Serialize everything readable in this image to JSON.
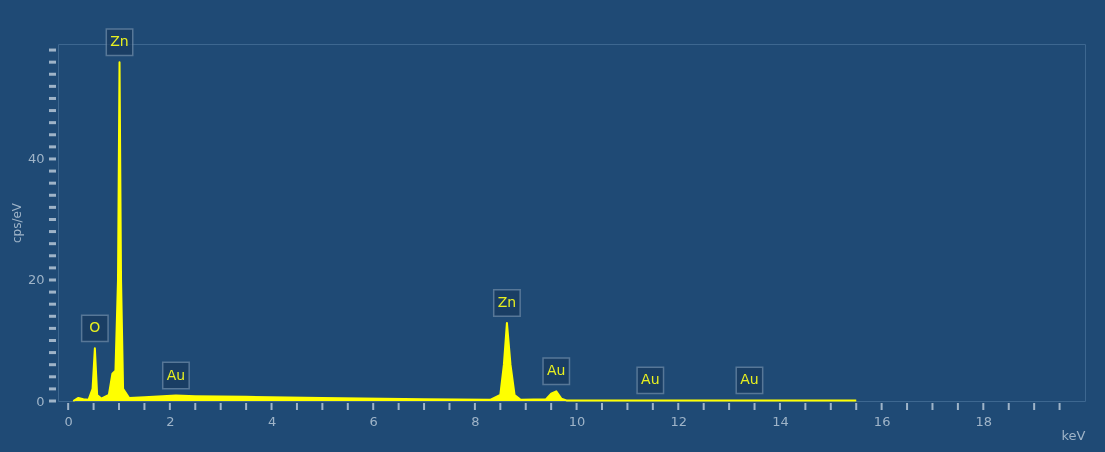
{
  "chart_data": {
    "type": "area",
    "xlabel": "keV",
    "ylabel": "cps/eV",
    "x": [
      0.1,
      0.2,
      0.3,
      0.4,
      0.48,
      0.525,
      0.57,
      0.65,
      0.8,
      0.87,
      0.93,
      0.98,
      1.01,
      1.04,
      1.08,
      1.2,
      1.5,
      2.12,
      2.5,
      3.5,
      5,
      7,
      8.3,
      8.5,
      8.57,
      8.63,
      8.7,
      8.78,
      8.9,
      9.4,
      9.5,
      9.6,
      9.7,
      9.8,
      12,
      15.5
    ],
    "series": [
      {
        "color": "#ffff00",
        "values": [
          0,
          0.5,
          0.3,
          0.2,
          2,
          8.7,
          1,
          0.4,
          1,
          4.5,
          5,
          20,
          56,
          20,
          2,
          0.5,
          0.6,
          0.9,
          0.8,
          0.7,
          0.5,
          0.3,
          0.2,
          1,
          6,
          12.9,
          6,
          1,
          0.2,
          0.3,
          1.2,
          1.6,
          0.4,
          0.1,
          0.1,
          0.1
        ]
      }
    ],
    "annotations": [
      {
        "text": "O",
        "x": 0.525,
        "y": 8.7
      },
      {
        "text": "Zn",
        "x": 1.01,
        "y": 56
      },
      {
        "text": "Au",
        "x": 2.12,
        "y": 0.9
      },
      {
        "text": "Zn",
        "x": 8.63,
        "y": 12.9
      },
      {
        "text": "Au",
        "x": 9.6,
        "y": 1.6
      },
      {
        "text": "Au",
        "x": 11.45,
        "y": 0.1
      },
      {
        "text": "Au",
        "x": 13.4,
        "y": 0.1
      }
    ],
    "xlim": [
      -0.2,
      20
    ],
    "ylim": [
      0,
      59
    ],
    "xticks": [
      0,
      {
        "value": 0.5,
        "label": null
      },
      {
        "value": 1,
        "label": null
      },
      {
        "value": 1.5,
        "label": null
      },
      2,
      {
        "value": 2.5,
        "label": null
      },
      {
        "value": 3,
        "label": null
      },
      {
        "value": 3.5,
        "label": null
      },
      4,
      {
        "value": 4.5,
        "label": null
      },
      {
        "value": 5,
        "label": null
      },
      {
        "value": 5.5,
        "label": null
      },
      6,
      {
        "value": 6.5,
        "label": null
      },
      {
        "value": 7,
        "label": null
      },
      {
        "value": 7.5,
        "label": null
      },
      8,
      {
        "value": 8.5,
        "label": null
      },
      {
        "value": 9,
        "label": null
      },
      {
        "value": 9.5,
        "label": null
      },
      10,
      {
        "value": 10.5,
        "label": null
      },
      {
        "value": 11,
        "label": null
      },
      {
        "value": 11.5,
        "label": null
      },
      12,
      {
        "value": 12.5,
        "label": null
      },
      {
        "value": 13,
        "label": null
      },
      {
        "value": 13.5,
        "label": null
      },
      14,
      {
        "value": 14.5,
        "label": null
      },
      {
        "value": 15,
        "label": null
      },
      {
        "value": 15.5,
        "label": null
      },
      16,
      {
        "value": 16.5,
        "label": null
      },
      {
        "value": 17,
        "label": null
      },
      {
        "value": 17.5,
        "label": null
      },
      18,
      {
        "value": 18.5,
        "label": null
      },
      {
        "value": 19,
        "label": null
      },
      {
        "value": 19.5,
        "label": null
      }
    ],
    "yticks": [
      0,
      {
        "value": 2,
        "label": null
      },
      {
        "value": 4,
        "label": null
      },
      {
        "value": 6,
        "label": null
      },
      {
        "value": 8,
        "label": null
      },
      {
        "value": 10,
        "label": null
      },
      {
        "value": 12,
        "label": null
      },
      {
        "value": 14,
        "label": null
      },
      {
        "value": 16,
        "label": null
      },
      {
        "value": 18,
        "label": null
      },
      20,
      {
        "value": 22,
        "label": null
      },
      {
        "value": 24,
        "label": null
      },
      {
        "value": 26,
        "label": null
      },
      {
        "value": 28,
        "label": null
      },
      {
        "value": 30,
        "label": null
      },
      {
        "value": 32,
        "label": null
      },
      {
        "value": 34,
        "label": null
      },
      {
        "value": 36,
        "label": null
      },
      {
        "value": 38,
        "label": null
      },
      40,
      {
        "value": 42,
        "label": null
      },
      {
        "value": 44,
        "label": null
      },
      {
        "value": 46,
        "label": null
      },
      {
        "value": 48,
        "label": null
      },
      {
        "value": 50,
        "label": null
      },
      {
        "value": 52,
        "label": null
      },
      {
        "value": 54,
        "label": null
      },
      {
        "value": 56,
        "label": null
      },
      {
        "value": 58,
        "label": null
      }
    ],
    "grid": false
  }
}
